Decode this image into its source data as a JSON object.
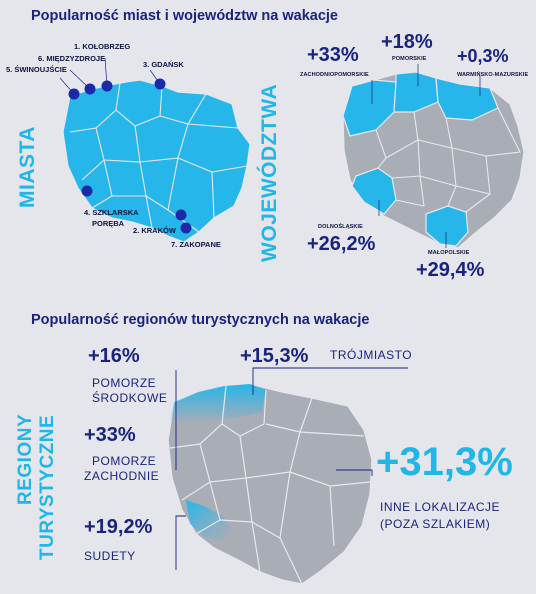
{
  "section1": {
    "title": "Popularność miast i województw na wakacje",
    "miasta_label": "MIASTA",
    "woj_label": "WOJEWÓDZTWA",
    "cities": [
      {
        "label": "1. KOŁOBRZEG"
      },
      {
        "label": "3. GDAŃSK"
      },
      {
        "label": "6. MIĘDZYZDROJE"
      },
      {
        "label": "5. ŚWINOUJŚCIE"
      },
      {
        "label": "4. SZKLARSKA"
      },
      {
        "label": "PORĘBA"
      },
      {
        "label": "2. KRAKÓW"
      },
      {
        "label": "7. ZAKOPANE"
      }
    ],
    "voivodeships": [
      {
        "pct": "+33%",
        "name": "ZACHODNIOPOMORSKIE"
      },
      {
        "pct": "+18%",
        "name": "POMORSKIE"
      },
      {
        "pct": "+0,3%",
        "name": "WARMIŃSKO-MAZURSKIE"
      },
      {
        "pct": "+26,2%",
        "name": "DOLNOŚLĄSKIE"
      },
      {
        "pct": "+29,4%",
        "name": "MAŁOPOLSKIE"
      }
    ]
  },
  "section2": {
    "title": "Popularność regionów turystycznych na wakacje",
    "side_label_1": "REGIONY",
    "side_label_2": "TURYSTYCZNE",
    "regions": [
      {
        "pct": "+16%",
        "line1": "POMORZE",
        "line2": "ŚRODKOWE"
      },
      {
        "pct": "+15,3%",
        "line1": "TRÓJMIASTO",
        "line2": ""
      },
      {
        "pct": "+33%",
        "line1": "POMORZE",
        "line2": "ZACHODNIE"
      },
      {
        "pct": "+19,2%",
        "line1": "SUDETY",
        "line2": ""
      },
      {
        "pct": "+31,3%",
        "line1": "INNE LOKALIZACJE",
        "line2": "(POZA SZLAKIEM)"
      }
    ]
  },
  "colors": {
    "background": "#e4e6ec",
    "navy": "#1a237e",
    "cyan": "#21b6e8",
    "map_grey": "#a9adb6",
    "map_border": "#e6e8ee",
    "dot": "#1a2aa8"
  }
}
